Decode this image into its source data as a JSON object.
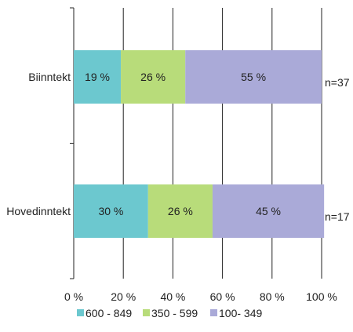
{
  "chart_data": {
    "type": "bar",
    "orientation": "horizontal",
    "stacked": "percent",
    "categories": [
      "Biinntekt",
      "Hovedinntekt"
    ],
    "category_notes": [
      "n=37",
      "n=17"
    ],
    "series": [
      {
        "name": "600 - 849",
        "values": [
          19,
          30
        ],
        "labels": [
          "19 %",
          "30 %"
        ],
        "color": "#6cc8cf"
      },
      {
        "name": "350 - 599",
        "values": [
          26,
          26
        ],
        "labels": [
          "26 %",
          "26 %"
        ],
        "color": "#b8dc7a"
      },
      {
        "name": "100- 349",
        "values": [
          55,
          45
        ],
        "labels": [
          "55 %",
          "45 %"
        ],
        "color": "#aaaad8"
      }
    ],
    "xlim": [
      0,
      100
    ],
    "xticks": [
      0,
      20,
      40,
      60,
      80,
      100
    ],
    "xtick_labels": [
      "0 %",
      "20 %",
      "40 %",
      "60 %",
      "80 %",
      "100 %"
    ],
    "grid": "vertical",
    "legend": "bottom"
  }
}
